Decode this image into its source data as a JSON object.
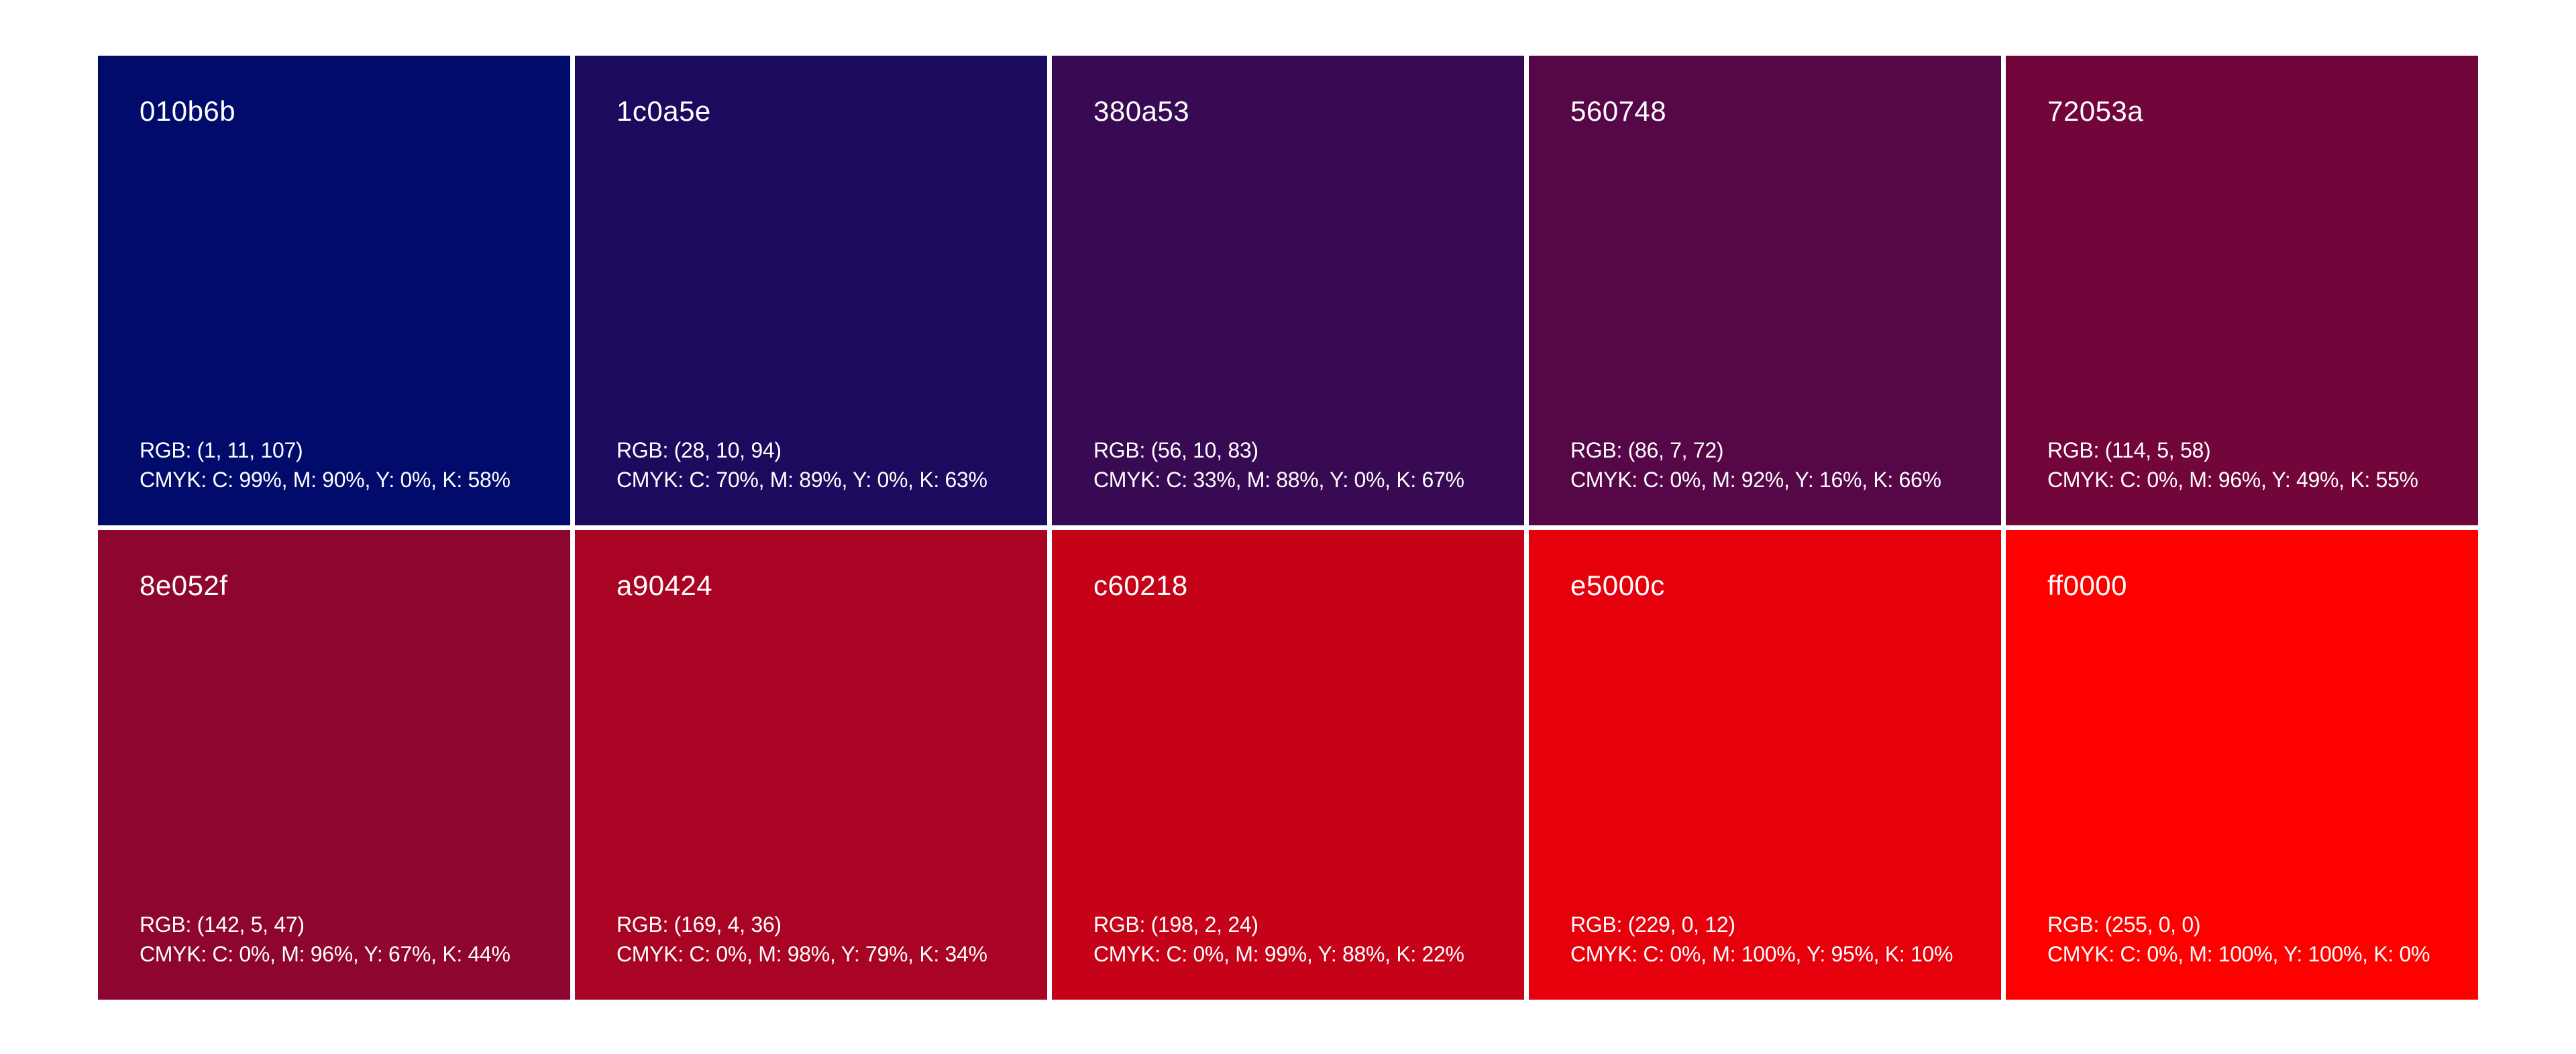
{
  "page": {
    "background_color": "#ffffff",
    "swatch_text_color": "#ffffff"
  },
  "palette": {
    "rows": 2,
    "columns": 5,
    "swatches": [
      {
        "hex": "010b6b",
        "rgb": "RGB: (1, 11, 107)",
        "cmyk": "CMYK: C: 99%, M: 90%, Y: 0%, K: 58%"
      },
      {
        "hex": "1c0a5e",
        "rgb": "RGB: (28, 10, 94)",
        "cmyk": "CMYK: C: 70%, M: 89%, Y: 0%, K: 63%"
      },
      {
        "hex": "380a53",
        "rgb": "RGB: (56, 10, 83)",
        "cmyk": "CMYK: C: 33%, M: 88%, Y: 0%, K: 67%"
      },
      {
        "hex": "560748",
        "rgb": "RGB: (86, 7, 72)",
        "cmyk": "CMYK: C: 0%, M: 92%, Y: 16%, K: 66%"
      },
      {
        "hex": "72053a",
        "rgb": "RGB: (114, 5, 58)",
        "cmyk": "CMYK: C: 0%, M: 96%, Y: 49%, K: 55%"
      },
      {
        "hex": "8e052f",
        "rgb": "RGB: (142, 5, 47)",
        "cmyk": "CMYK: C: 0%, M: 96%, Y: 67%, K: 44%"
      },
      {
        "hex": "a90424",
        "rgb": "RGB: (169, 4, 36)",
        "cmyk": "CMYK: C: 0%, M: 98%, Y: 79%, K: 34%"
      },
      {
        "hex": "c60218",
        "rgb": "RGB: (198, 2, 24)",
        "cmyk": "CMYK: C: 0%, M: 99%, Y: 88%, K: 22%"
      },
      {
        "hex": "e5000c",
        "rgb": "RGB: (229, 0, 12)",
        "cmyk": "CMYK: C: 0%, M: 100%, Y: 95%, K: 10%"
      },
      {
        "hex": "ff0000",
        "rgb": "RGB: (255, 0, 0)",
        "cmyk": "CMYK: C: 0%, M: 100%, Y: 100%, K: 0%"
      }
    ]
  }
}
